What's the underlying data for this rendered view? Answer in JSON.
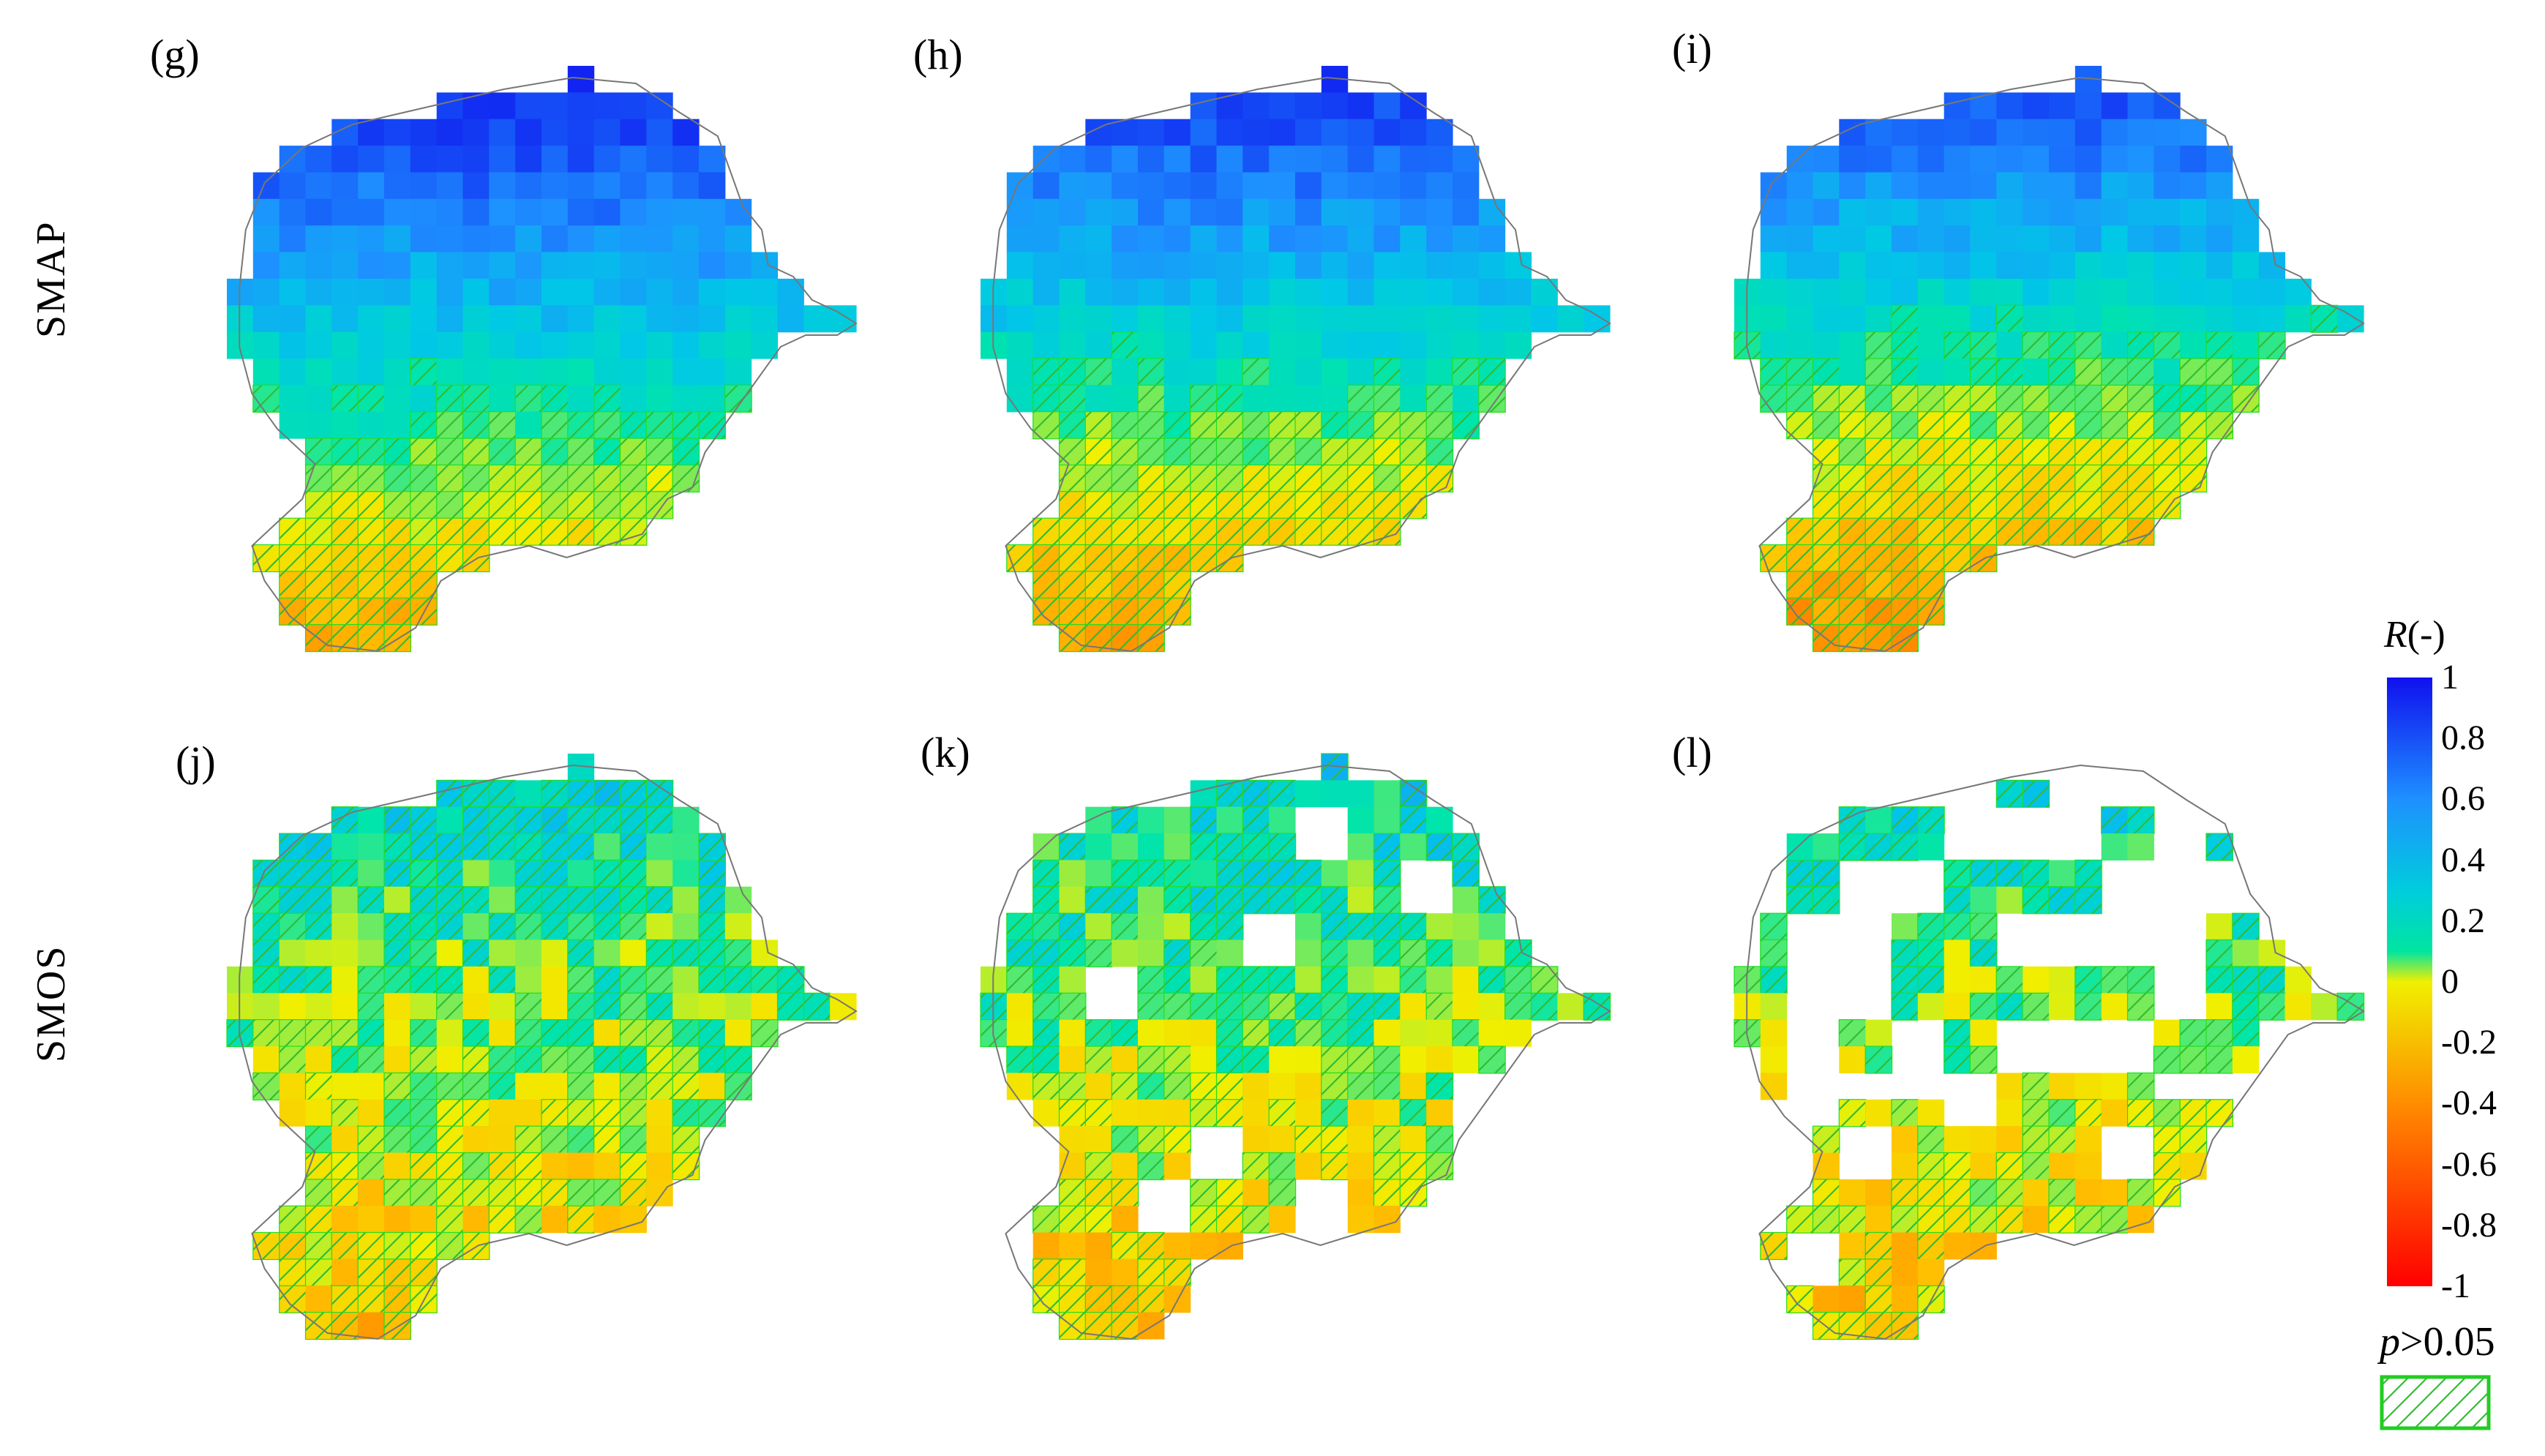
{
  "panels": [
    {
      "id": "g",
      "label": "(g)",
      "row": "SMAP",
      "col": 0
    },
    {
      "id": "h",
      "label": "(h)",
      "row": "SMAP",
      "col": 1
    },
    {
      "id": "i",
      "label": "(i)",
      "row": "SMAP",
      "col": 2
    },
    {
      "id": "j",
      "label": "(j)",
      "row": "SMOS",
      "col": 0
    },
    {
      "id": "k",
      "label": "(k)",
      "row": "SMOS",
      "col": 1
    },
    {
      "id": "l",
      "label": "(l)",
      "row": "SMOS",
      "col": 2
    }
  ],
  "row_labels": {
    "smap": "SMAP",
    "smos": "SMOS"
  },
  "colorbar": {
    "title_symbol": "R",
    "title_unit": "(-)",
    "range": [
      -1,
      1
    ],
    "ticks": [
      "1",
      "0.8",
      "0.6",
      "0.4",
      "0.2",
      "0",
      "-0.2",
      "-0.4",
      "-0.6",
      "-0.8",
      "-1"
    ],
    "colors": {
      "max": "#1010ee",
      "high": "#1e90ff",
      "mid": "#00e5b0",
      "zero": "#f0f000",
      "low": "#ff8c00",
      "min": "#ff0000"
    }
  },
  "significance_legend": {
    "symbol": "p",
    "text": ">0.05",
    "hatch_color": "#22cc22"
  }
}
